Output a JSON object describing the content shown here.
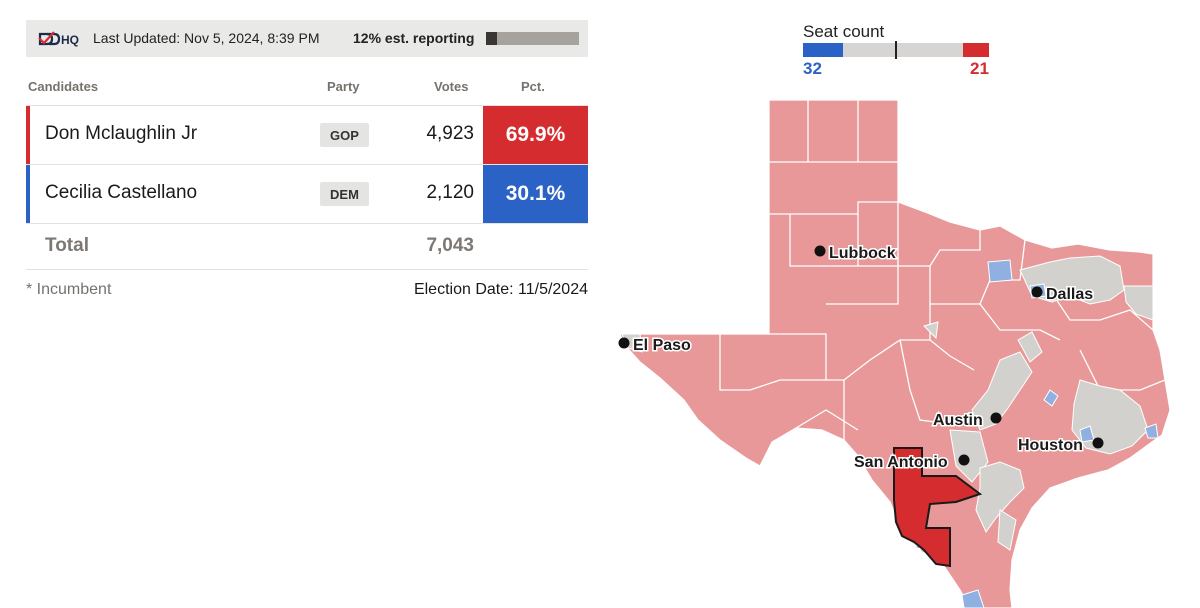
{
  "header": {
    "logo_text": "DDHQ",
    "last_updated": "Last Updated: Nov 5, 2024, 8:39 PM",
    "reporting_text": "12% est. reporting",
    "reporting_fraction": 0.12
  },
  "table": {
    "columns": {
      "candidates": "Candidates",
      "party": "Party",
      "votes": "Votes",
      "pct": "Pct."
    },
    "rows": [
      {
        "name": "Don Mclaughlin Jr",
        "party": "GOP",
        "votes": "4,923",
        "pct": "69.9%",
        "color": "#d52d2f"
      },
      {
        "name": "Cecilia Castellano",
        "party": "DEM",
        "votes": "2,120",
        "pct": "30.1%",
        "color": "#2a63c5"
      }
    ],
    "total_label": "Total",
    "total_votes": "7,043"
  },
  "footer": {
    "incumbent_note": "* Incumbent",
    "election_date": "Election Date: 11/5/2024"
  },
  "seats": {
    "title": "Seat count",
    "dem": 32,
    "rep": 21,
    "dem_color": "#2a63c5",
    "rep_color": "#d52d2f"
  },
  "map": {
    "colors": {
      "rep_light": "#e89898",
      "dem_light": "#8fb0e0",
      "uncalled": "#d3d1ce",
      "highlight": "#d52d2f"
    },
    "cities": [
      "Lubbock",
      "Dallas",
      "El Paso",
      "Austin",
      "Houston",
      "San Antonio"
    ]
  }
}
